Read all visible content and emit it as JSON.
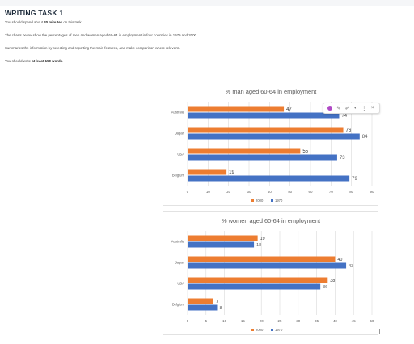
{
  "task": {
    "title": "WRITING TASK 1",
    "time_prefix": "You should spend about ",
    "time_bold": "20 minutes",
    "time_suffix": " on this task.",
    "description": "The charts below show the percentages of men and women aged 60-64 in employment in four countries in 1970 and 2000",
    "instruction": "Summaries the information by selecting and reporting the main features, and make comparison where relevent.",
    "words_prefix": "You should write ",
    "words_bold": "at least 150 words",
    "words_suffix": "."
  },
  "toolbar": {
    "icons": [
      "color-picker-icon",
      "pencil-icon",
      "edit-icon",
      "eraser-icon",
      "more-icon",
      "close-icon"
    ],
    "accent": "#b04ac6"
  },
  "colors": {
    "series_2000": "#ed7d31",
    "series_1970": "#4472c4",
    "grid": "#d9d9d9",
    "text": "#595959"
  },
  "chart_data": [
    {
      "type": "bar",
      "orientation": "horizontal",
      "title": "% man aged 60-64 in employment",
      "categories": [
        "Australia",
        "Japan",
        "USA",
        "Belgium"
      ],
      "series": [
        {
          "name": "2000",
          "values": [
            47,
            76,
            55,
            19
          ]
        },
        {
          "name": "1970",
          "values": [
            74,
            84,
            73,
            79
          ]
        }
      ],
      "xlim": [
        0,
        90
      ],
      "xticks": [
        0,
        10,
        20,
        30,
        40,
        50,
        60,
        70,
        80,
        90
      ],
      "grid": true,
      "legend": "bottom"
    },
    {
      "type": "bar",
      "orientation": "horizontal",
      "title": "% women aged 60-64 in employment",
      "categories": [
        "Australia",
        "Japan",
        "USA",
        "Belgium"
      ],
      "series": [
        {
          "name": "2000",
          "values": [
            19,
            40,
            38,
            7
          ]
        },
        {
          "name": "1970",
          "values": [
            18,
            43,
            36,
            8
          ]
        }
      ],
      "xlim": [
        0,
        50
      ],
      "xticks": [
        0,
        5,
        10,
        15,
        20,
        25,
        30,
        35,
        40,
        45,
        50
      ],
      "grid": true,
      "legend": "bottom"
    }
  ]
}
